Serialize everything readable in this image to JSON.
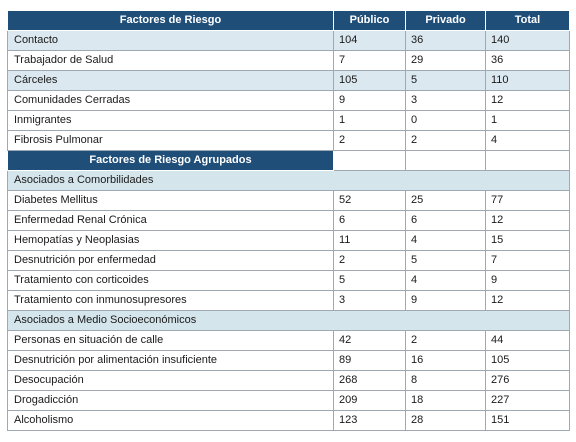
{
  "header": {
    "col1": "Factores de Riesgo",
    "col2": "Público",
    "col3": "Privado",
    "col4": "Total"
  },
  "risk_rows": [
    {
      "label": "Contacto",
      "publico": "104",
      "privado": "36",
      "total": "140"
    },
    {
      "label": "Trabajador de Salud",
      "publico": "7",
      "privado": "29",
      "total": "36"
    },
    {
      "label": "Cárceles",
      "publico": "105",
      "privado": "5",
      "total": "110"
    },
    {
      "label": "Comunidades Cerradas",
      "publico": "9",
      "privado": "3",
      "total": "12"
    },
    {
      "label": "Inmigrantes",
      "publico": "1",
      "privado": "0",
      "total": "1"
    },
    {
      "label": "Fibrosis Pulmonar",
      "publico": "2",
      "privado": "2",
      "total": "4"
    }
  ],
  "grouped_header": "Factores de Riesgo Agrupados",
  "section_comorbidities": "Asociados a Comorbilidades",
  "comorbidity_rows": [
    {
      "label": "Diabetes Mellitus",
      "publico": "52",
      "privado": "25",
      "total": "77"
    },
    {
      "label": "Enfermedad Renal Crónica",
      "publico": "6",
      "privado": "6",
      "total": "12"
    },
    {
      "label": "Hemopatías y Neoplasias",
      "publico": "11",
      "privado": "4",
      "total": "15"
    },
    {
      "label": "Desnutrición por enfermedad",
      "publico": "2",
      "privado": "5",
      "total": "7"
    },
    {
      "label": "Tratamiento con corticoides",
      "publico": "5",
      "privado": "4",
      "total": "9"
    },
    {
      "label": "Tratamiento con inmunosupresores",
      "publico": "3",
      "privado": "9",
      "total": "12"
    }
  ],
  "section_socioeconomic": "Asociados a Medio Socioeconómicos",
  "socioeconomic_rows": [
    {
      "label": "Personas en situación de calle",
      "publico": "42",
      "privado": "2",
      "total": "44"
    },
    {
      "label": "Desnutrición por alimentación insuficiente",
      "publico": "89",
      "privado": "16",
      "total": "105"
    },
    {
      "label": "Desocupación",
      "publico": "268",
      "privado": "8",
      "total": "276"
    },
    {
      "label": "Drogadicción",
      "publico": "209",
      "privado": "18",
      "total": "227"
    },
    {
      "label": "Alcoholismo",
      "publico": "123",
      "privado": "28",
      "total": "151"
    }
  ]
}
